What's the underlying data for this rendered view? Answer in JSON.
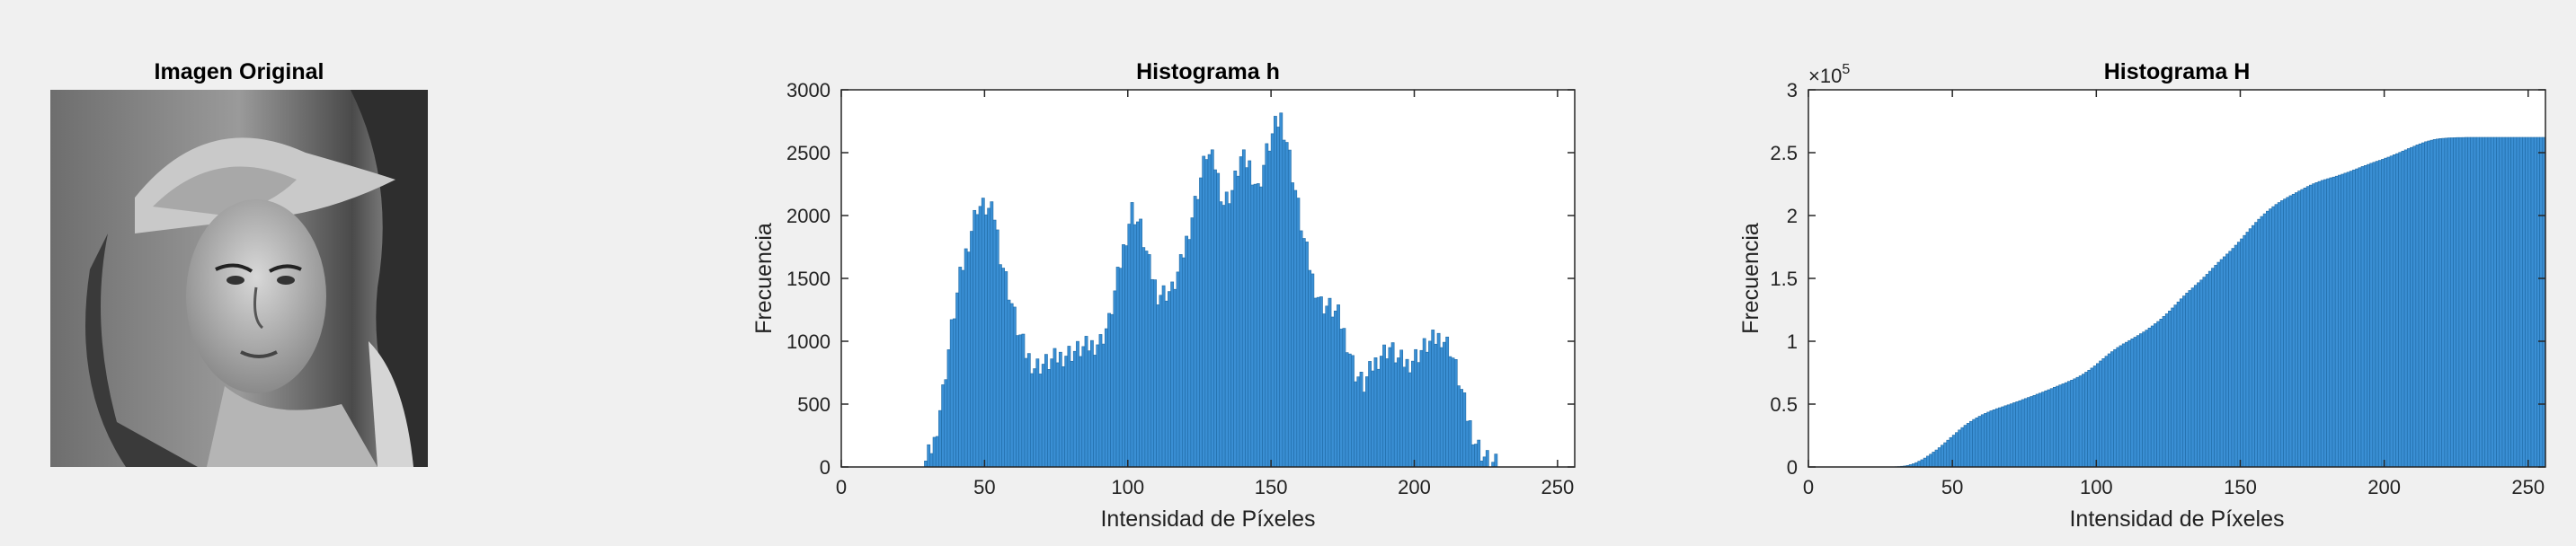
{
  "panels": {
    "image": {
      "title": "Imagen Original"
    },
    "hist_h": {
      "title": "Histograma h",
      "xlabel": "Intensidad de Píxeles",
      "ylabel": "Frecuencia"
    },
    "hist_H": {
      "title": "Histograma H",
      "xlabel": "Intensidad de Píxeles",
      "ylabel": "Frecuencia",
      "exponent_label": "×10",
      "exponent_power": "5"
    }
  },
  "colors": {
    "bar_fill": "#3a8fd4",
    "bar_edge": "#1f6aa5",
    "background": "#f0f0f0",
    "axes_bg": "#ffffff"
  },
  "chart_data": [
    {
      "type": "bar",
      "title": "Histograma h",
      "xlabel": "Intensidad de Píxeles",
      "ylabel": "Frecuencia",
      "xlim": [
        0,
        256
      ],
      "ylim": [
        0,
        3000
      ],
      "xticks": [
        0,
        50,
        100,
        150,
        200,
        250
      ],
      "yticks": [
        0,
        500,
        1000,
        1500,
        2000,
        2500,
        3000
      ],
      "grid": false,
      "bins": "0-255",
      "keypoints": [
        [
          0,
          0
        ],
        [
          27,
          0
        ],
        [
          29,
          30
        ],
        [
          32,
          200
        ],
        [
          35,
          600
        ],
        [
          38,
          1100
        ],
        [
          41,
          1500
        ],
        [
          44,
          1800
        ],
        [
          47,
          2080
        ],
        [
          50,
          2060
        ],
        [
          53,
          2000
        ],
        [
          55,
          1700
        ],
        [
          58,
          1400
        ],
        [
          61,
          1100
        ],
        [
          64,
          900
        ],
        [
          67,
          800
        ],
        [
          72,
          830
        ],
        [
          78,
          900
        ],
        [
          84,
          940
        ],
        [
          90,
          1000
        ],
        [
          93,
          1150
        ],
        [
          96,
          1500
        ],
        [
          99,
          1850
        ],
        [
          101,
          2050
        ],
        [
          104,
          1900
        ],
        [
          107,
          1600
        ],
        [
          110,
          1380
        ],
        [
          115,
          1400
        ],
        [
          118,
          1600
        ],
        [
          121,
          1900
        ],
        [
          124,
          2200
        ],
        [
          127,
          2500
        ],
        [
          130,
          2400
        ],
        [
          133,
          2100
        ],
        [
          136,
          2200
        ],
        [
          139,
          2450
        ],
        [
          142,
          2400
        ],
        [
          145,
          2200
        ],
        [
          148,
          2500
        ],
        [
          151,
          2700
        ],
        [
          153,
          2780
        ],
        [
          155,
          2600
        ],
        [
          158,
          2200
        ],
        [
          161,
          1800
        ],
        [
          164,
          1500
        ],
        [
          167,
          1300
        ],
        [
          170,
          1270
        ],
        [
          173,
          1200
        ],
        [
          176,
          1000
        ],
        [
          179,
          750
        ],
        [
          182,
          650
        ],
        [
          185,
          800
        ],
        [
          188,
          900
        ],
        [
          191,
          950
        ],
        [
          194,
          850
        ],
        [
          197,
          820
        ],
        [
          200,
          880
        ],
        [
          203,
          950
        ],
        [
          206,
          1000
        ],
        [
          209,
          1040
        ],
        [
          212,
          950
        ],
        [
          215,
          700
        ],
        [
          218,
          400
        ],
        [
          221,
          200
        ],
        [
          224,
          80
        ],
        [
          227,
          20
        ],
        [
          230,
          0
        ],
        [
          255,
          0
        ]
      ]
    },
    {
      "type": "bar",
      "title": "Histograma H",
      "xlabel": "Intensidad de Píxeles",
      "ylabel": "Frecuencia",
      "xlim": [
        0,
        256
      ],
      "ylim": [
        0,
        3
      ],
      "y_multiplier": "×10^5",
      "xticks": [
        0,
        50,
        100,
        150,
        200,
        250
      ],
      "yticks": [
        0,
        0.5,
        1,
        1.5,
        2,
        2.5,
        3
      ],
      "grid": false,
      "bins": "0-255",
      "cumulative_of": "Histograma h"
    }
  ]
}
